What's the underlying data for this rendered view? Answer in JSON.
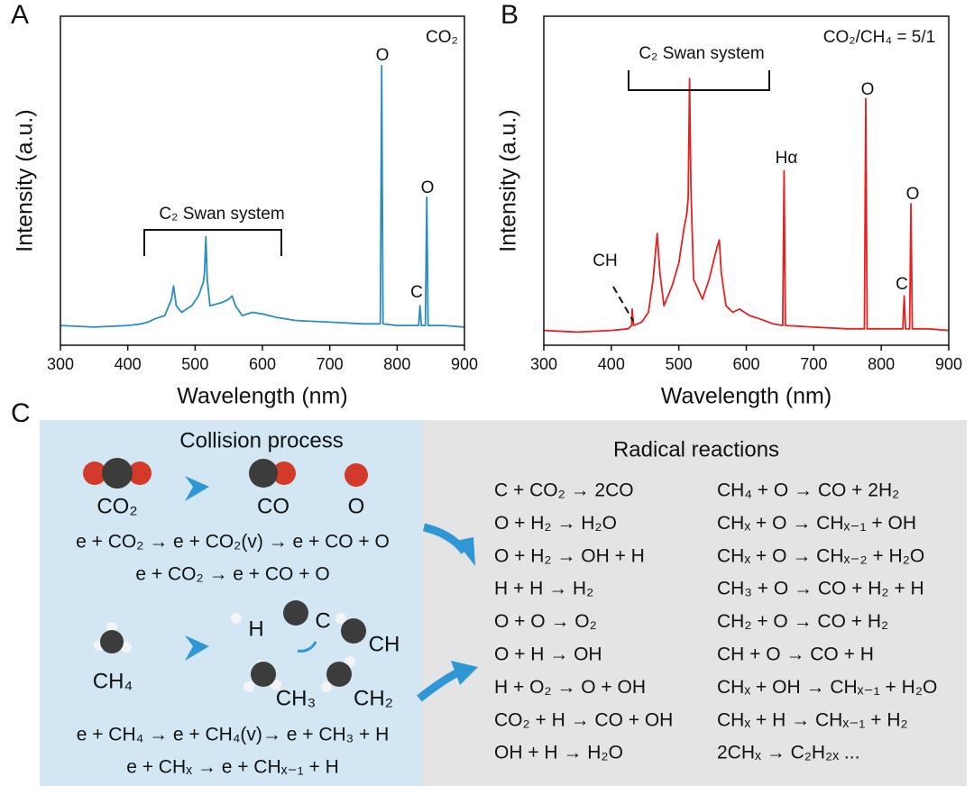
{
  "chart_data": [
    {
      "type": "line",
      "panel_label": "A",
      "xlabel": "Wavelength (nm)",
      "ylabel": "Intensity (a.u.)",
      "color": "#2a8cc4",
      "xlim": [
        300,
        900
      ],
      "xticks": [
        300,
        400,
        500,
        600,
        700,
        800,
        900
      ],
      "ylim": [
        0,
        100
      ],
      "x": [
        300,
        350,
        400,
        420,
        430,
        440,
        455,
        465,
        468,
        472,
        480,
        495,
        505,
        512,
        514,
        516,
        518,
        522,
        540,
        550,
        555,
        560,
        570,
        585,
        600,
        620,
        650,
        700,
        750,
        775,
        777,
        779,
        800,
        832,
        834,
        836,
        842,
        844,
        846,
        870,
        900
      ],
      "values": [
        6,
        5.5,
        6,
        6.5,
        7,
        8,
        9,
        14,
        18,
        12,
        10,
        12,
        15,
        19,
        22,
        33,
        20,
        12,
        13,
        14,
        15,
        12,
        9,
        10,
        9.5,
        8.5,
        7.5,
        7,
        6.5,
        6.5,
        85,
        6.5,
        6,
        6,
        12,
        6,
        6,
        45,
        6,
        6,
        5.5
      ],
      "annotations": [
        "CO₂",
        "O",
        "O",
        "C",
        "C₂ Swan system"
      ]
    },
    {
      "type": "line",
      "panel_label": "B",
      "xlabel": "Wavelength (nm)",
      "ylabel": "Intensity (a.u.)",
      "color": "#e8201f",
      "xlim": [
        300,
        900
      ],
      "xticks": [
        300,
        400,
        500,
        600,
        700,
        800,
        900
      ],
      "ylim": [
        0,
        100
      ],
      "x": [
        300,
        350,
        400,
        425,
        430,
        431,
        433,
        445,
        455,
        462,
        468,
        472,
        478,
        490,
        500,
        508,
        512,
        514,
        516,
        518,
        522,
        535,
        545,
        552,
        557,
        560,
        563,
        570,
        580,
        590,
        605,
        620,
        640,
        654,
        656,
        658,
        700,
        750,
        775,
        777,
        779,
        800,
        832,
        834,
        836,
        842,
        844,
        846,
        870,
        900
      ],
      "values": [
        4.5,
        4,
        4.5,
        5,
        6,
        11,
        6,
        7,
        10,
        20,
        34,
        22,
        12,
        18,
        25,
        36,
        40,
        45,
        81,
        48,
        20,
        14,
        20,
        26,
        30,
        32,
        22,
        12,
        10,
        11,
        9,
        8,
        6.5,
        6,
        53,
        6,
        5.5,
        5,
        5,
        75,
        5,
        5,
        5,
        15,
        5,
        5,
        43,
        5,
        5,
        4.5
      ],
      "annotations": [
        "CO₂/CH₄ = 5/1",
        "C₂ Swan system",
        "Hα",
        "O",
        "O",
        "C",
        "CH"
      ]
    }
  ],
  "panel_c": {
    "label": "C",
    "collision": {
      "title": "Collision process",
      "molecules": [
        "CO₂",
        "CO",
        "O",
        "CH₄",
        "H",
        "C",
        "CH",
        "CH₃",
        "CH₂"
      ],
      "equations": [
        "e + CO₂ → e + CO₂(v) → e + CO + O",
        "e + CO₂ → e + CO + O",
        "e + CH₄ → e + CH₄(v)→ e + CH₃ + H",
        "e + CHₓ → e + CHₓ₋₁ + H"
      ]
    },
    "radical": {
      "title": "Radical reactions",
      "left": [
        "C + CO₂ → 2CO",
        "O + H₂ → H₂O",
        "O + H₂ → OH + H",
        "H + H → H₂",
        "O + O → O₂",
        "O + H → OH",
        "H + O₂ → O + OH",
        "CO₂ + H → CO + OH",
        "OH + H → H₂O"
      ],
      "right": [
        "CH₄ + O → CO + 2H₂",
        "CHₓ + O → CHₓ₋₁ + OH",
        "CHₓ + O → CHₓ₋₂ + H₂O",
        "CH₃ + O → CO + H₂ + H",
        "CH₂ + O → CO + H₂",
        "CH + O → CO + H",
        "CHₓ + OH → CHₓ₋₁ + H₂O",
        "CHₓ + H → CHₓ₋₁ + H₂",
        "2CHₓ → C₂H₂ₓ  ..."
      ]
    }
  }
}
